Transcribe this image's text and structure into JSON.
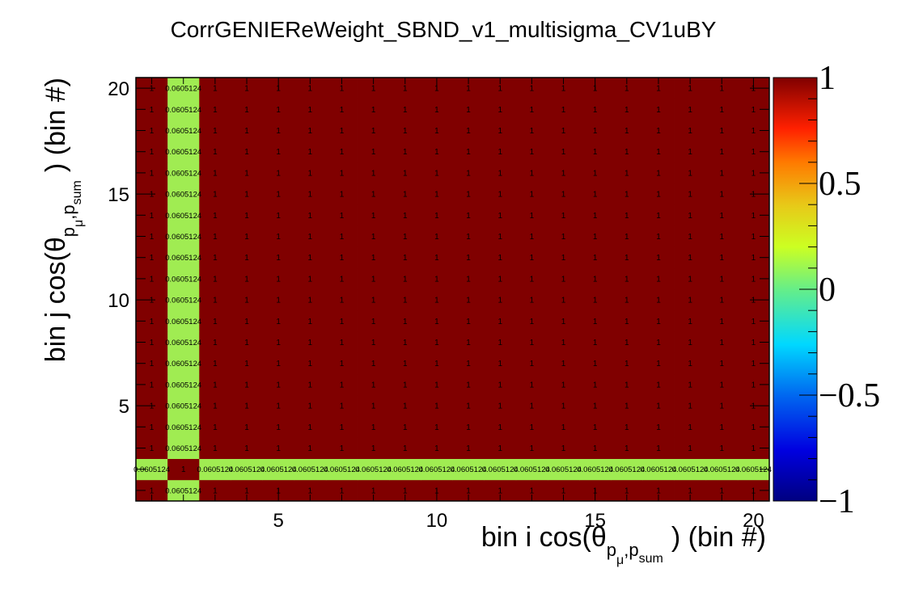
{
  "chart_data": {
    "type": "heatmap",
    "title": "CorrGENIEReWeight_SBND_v1_multisigma_CV1uBY",
    "xlabel": {
      "prefix": "bin i cos(θ",
      "sub1": "p",
      "sub_mu": "μ",
      "sub_sep": ",",
      "sub2": "p",
      "sub_sum": "sum",
      "suffix": ") (bin #)"
    },
    "ylabel": {
      "prefix": "bin j cos(θ",
      "sub1": "p",
      "sub_mu": "μ",
      "sub_sep": ",",
      "sub2": "p",
      "sub_sum": "sum",
      "suffix": ") (bin #)"
    },
    "nx": 20,
    "ny": 20,
    "xlim": [
      0.5,
      20.5
    ],
    "ylim": [
      0.5,
      20.5
    ],
    "x_ticks": [
      5,
      10,
      15,
      20
    ],
    "y_ticks": [
      5,
      10,
      15,
      20
    ],
    "zlim": [
      -1,
      1
    ],
    "colorbar_ticks": [
      {
        "value": 1,
        "label": "1"
      },
      {
        "value": 0.5,
        "label": "0.5"
      },
      {
        "value": 0,
        "label": "0"
      },
      {
        "value": -0.5,
        "label": "−0.5"
      },
      {
        "value": -1,
        "label": "−1"
      }
    ],
    "special_bin": 2,
    "off_value": 0.0605124,
    "off_label": "0.0605124",
    "diag_value": 1,
    "diag_label": "1",
    "default_value": 1,
    "default_label": "1",
    "colors": {
      "high": "#800000",
      "off": "#a0ec52"
    }
  }
}
